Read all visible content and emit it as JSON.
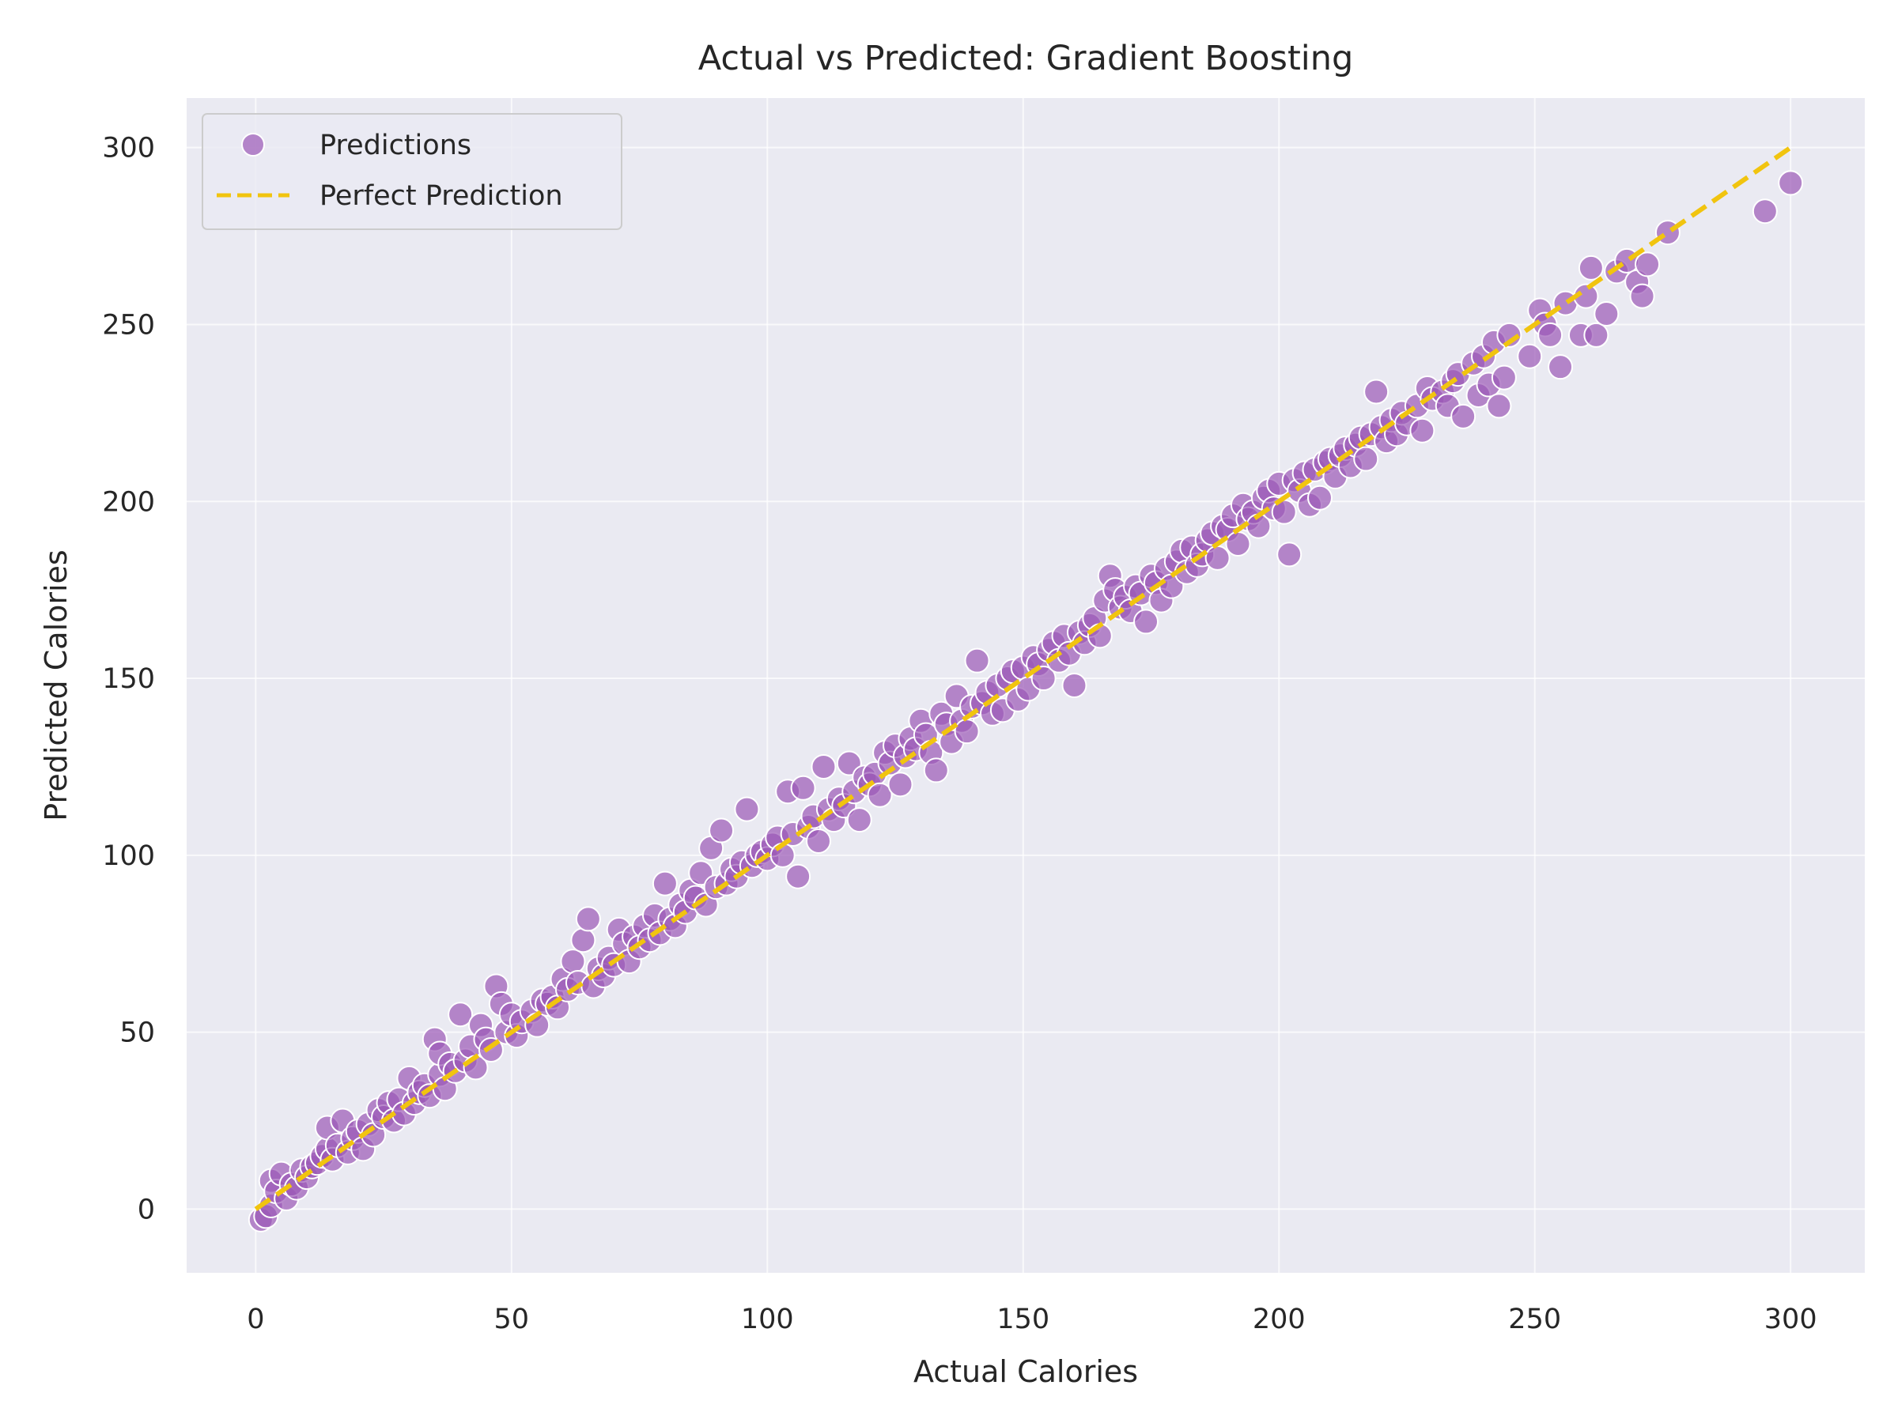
{
  "chart_data": {
    "type": "scatter",
    "title": "Actual vs Predicted: Gradient Boosting",
    "xlabel": "Actual Calories",
    "ylabel": "Predicted Calories",
    "xlim": [
      -13.5,
      314.5
    ],
    "ylim": [
      -18,
      314
    ],
    "xticks": [
      0,
      50,
      100,
      150,
      200,
      250,
      300
    ],
    "yticks": [
      0,
      50,
      100,
      150,
      200,
      250,
      300
    ],
    "grid": true,
    "legend": {
      "placement": "top-left",
      "entries": [
        "Predictions",
        "Perfect Prediction"
      ]
    },
    "series": [
      {
        "name": "Predictions",
        "color": "#9b59b6",
        "points": [
          [
            1,
            -3
          ],
          [
            2,
            -2
          ],
          [
            3,
            1
          ],
          [
            3,
            8
          ],
          [
            4,
            5
          ],
          [
            5,
            10
          ],
          [
            6,
            3
          ],
          [
            7,
            7
          ],
          [
            8,
            6
          ],
          [
            9,
            11
          ],
          [
            10,
            9
          ],
          [
            11,
            12
          ],
          [
            12,
            13
          ],
          [
            13,
            15
          ],
          [
            14,
            17
          ],
          [
            14,
            23
          ],
          [
            15,
            14
          ],
          [
            16,
            18
          ],
          [
            17,
            25
          ],
          [
            18,
            16
          ],
          [
            19,
            20
          ],
          [
            20,
            22
          ],
          [
            21,
            17
          ],
          [
            22,
            24
          ],
          [
            23,
            21
          ],
          [
            24,
            28
          ],
          [
            25,
            26
          ],
          [
            26,
            30
          ],
          [
            27,
            25
          ],
          [
            28,
            31
          ],
          [
            29,
            27
          ],
          [
            30,
            37
          ],
          [
            31,
            30
          ],
          [
            32,
            33
          ],
          [
            33,
            35
          ],
          [
            34,
            32
          ],
          [
            35,
            48
          ],
          [
            36,
            38
          ],
          [
            36,
            44
          ],
          [
            37,
            34
          ],
          [
            38,
            41
          ],
          [
            39,
            39
          ],
          [
            40,
            55
          ],
          [
            41,
            42
          ],
          [
            42,
            46
          ],
          [
            43,
            40
          ],
          [
            44,
            52
          ],
          [
            45,
            48
          ],
          [
            46,
            45
          ],
          [
            47,
            63
          ],
          [
            48,
            58
          ],
          [
            49,
            50
          ],
          [
            50,
            55
          ],
          [
            51,
            49
          ],
          [
            52,
            53
          ],
          [
            54,
            56
          ],
          [
            55,
            52
          ],
          [
            56,
            59
          ],
          [
            57,
            58
          ],
          [
            58,
            60
          ],
          [
            59,
            57
          ],
          [
            60,
            65
          ],
          [
            61,
            62
          ],
          [
            62,
            70
          ],
          [
            63,
            64
          ],
          [
            64,
            76
          ],
          [
            65,
            82
          ],
          [
            66,
            63
          ],
          [
            67,
            68
          ],
          [
            68,
            66
          ],
          [
            69,
            71
          ],
          [
            70,
            69
          ],
          [
            71,
            79
          ],
          [
            72,
            75
          ],
          [
            73,
            70
          ],
          [
            74,
            77
          ],
          [
            75,
            74
          ],
          [
            76,
            80
          ],
          [
            77,
            76
          ],
          [
            78,
            83
          ],
          [
            79,
            78
          ],
          [
            80,
            92
          ],
          [
            81,
            82
          ],
          [
            82,
            80
          ],
          [
            83,
            86
          ],
          [
            84,
            84
          ],
          [
            85,
            90
          ],
          [
            86,
            88
          ],
          [
            87,
            95
          ],
          [
            88,
            86
          ],
          [
            89,
            102
          ],
          [
            90,
            91
          ],
          [
            91,
            107
          ],
          [
            92,
            92
          ],
          [
            93,
            96
          ],
          [
            94,
            94
          ],
          [
            95,
            98
          ],
          [
            96,
            113
          ],
          [
            97,
            97
          ],
          [
            98,
            100
          ],
          [
            99,
            101
          ],
          [
            100,
            99
          ],
          [
            101,
            103
          ],
          [
            102,
            105
          ],
          [
            103,
            100
          ],
          [
            104,
            118
          ],
          [
            105,
            106
          ],
          [
            106,
            94
          ],
          [
            107,
            119
          ],
          [
            108,
            108
          ],
          [
            109,
            111
          ],
          [
            110,
            104
          ],
          [
            111,
            125
          ],
          [
            112,
            113
          ],
          [
            113,
            110
          ],
          [
            114,
            116
          ],
          [
            115,
            114
          ],
          [
            116,
            126
          ],
          [
            117,
            118
          ],
          [
            118,
            110
          ],
          [
            119,
            122
          ],
          [
            120,
            120
          ],
          [
            121,
            123
          ],
          [
            122,
            117
          ],
          [
            123,
            129
          ],
          [
            124,
            126
          ],
          [
            125,
            131
          ],
          [
            126,
            120
          ],
          [
            127,
            128
          ],
          [
            128,
            133
          ],
          [
            129,
            130
          ],
          [
            130,
            138
          ],
          [
            131,
            134
          ],
          [
            132,
            129
          ],
          [
            133,
            124
          ],
          [
            134,
            140
          ],
          [
            135,
            137
          ],
          [
            136,
            132
          ],
          [
            137,
            145
          ],
          [
            138,
            138
          ],
          [
            139,
            135
          ],
          [
            140,
            142
          ],
          [
            141,
            155
          ],
          [
            142,
            143
          ],
          [
            143,
            146
          ],
          [
            144,
            140
          ],
          [
            145,
            148
          ],
          [
            146,
            141
          ],
          [
            147,
            150
          ],
          [
            148,
            152
          ],
          [
            149,
            144
          ],
          [
            150,
            153
          ],
          [
            151,
            147
          ],
          [
            152,
            156
          ],
          [
            153,
            154
          ],
          [
            154,
            150
          ],
          [
            155,
            158
          ],
          [
            156,
            160
          ],
          [
            157,
            155
          ],
          [
            158,
            162
          ],
          [
            159,
            157
          ],
          [
            160,
            148
          ],
          [
            161,
            163
          ],
          [
            162,
            160
          ],
          [
            163,
            165
          ],
          [
            164,
            167
          ],
          [
            165,
            162
          ],
          [
            166,
            172
          ],
          [
            167,
            179
          ],
          [
            168,
            175
          ],
          [
            169,
            170
          ],
          [
            170,
            173
          ],
          [
            171,
            169
          ],
          [
            172,
            176
          ],
          [
            173,
            174
          ],
          [
            174,
            166
          ],
          [
            175,
            179
          ],
          [
            176,
            177
          ],
          [
            177,
            172
          ],
          [
            178,
            181
          ],
          [
            179,
            176
          ],
          [
            180,
            183
          ],
          [
            181,
            186
          ],
          [
            182,
            180
          ],
          [
            183,
            187
          ],
          [
            184,
            182
          ],
          [
            185,
            185
          ],
          [
            186,
            189
          ],
          [
            187,
            191
          ],
          [
            188,
            184
          ],
          [
            189,
            193
          ],
          [
            190,
            192
          ],
          [
            191,
            196
          ],
          [
            192,
            188
          ],
          [
            193,
            199
          ],
          [
            194,
            195
          ],
          [
            195,
            197
          ],
          [
            196,
            193
          ],
          [
            197,
            201
          ],
          [
            198,
            203
          ],
          [
            199,
            198
          ],
          [
            200,
            205
          ],
          [
            201,
            197
          ],
          [
            202,
            185
          ],
          [
            203,
            206
          ],
          [
            204,
            203
          ],
          [
            205,
            208
          ],
          [
            206,
            199
          ],
          [
            207,
            209
          ],
          [
            208,
            201
          ],
          [
            209,
            211
          ],
          [
            210,
            212
          ],
          [
            211,
            207
          ],
          [
            212,
            213
          ],
          [
            213,
            215
          ],
          [
            214,
            210
          ],
          [
            215,
            216
          ],
          [
            216,
            218
          ],
          [
            217,
            212
          ],
          [
            218,
            219
          ],
          [
            219,
            231
          ],
          [
            220,
            221
          ],
          [
            221,
            217
          ],
          [
            222,
            223
          ],
          [
            223,
            219
          ],
          [
            224,
            225
          ],
          [
            225,
            222
          ],
          [
            227,
            227
          ],
          [
            228,
            220
          ],
          [
            229,
            232
          ],
          [
            230,
            229
          ],
          [
            232,
            231
          ],
          [
            233,
            227
          ],
          [
            234,
            234
          ],
          [
            235,
            236
          ],
          [
            236,
            224
          ],
          [
            238,
            239
          ],
          [
            239,
            230
          ],
          [
            240,
            241
          ],
          [
            241,
            233
          ],
          [
            242,
            245
          ],
          [
            243,
            227
          ],
          [
            244,
            235
          ],
          [
            245,
            247
          ],
          [
            249,
            241
          ],
          [
            251,
            254
          ],
          [
            252,
            250
          ],
          [
            253,
            247
          ],
          [
            255,
            238
          ],
          [
            256,
            256
          ],
          [
            259,
            247
          ],
          [
            260,
            258
          ],
          [
            261,
            266
          ],
          [
            262,
            247
          ],
          [
            264,
            253
          ],
          [
            266,
            265
          ],
          [
            268,
            268
          ],
          [
            270,
            262
          ],
          [
            271,
            258
          ],
          [
            272,
            267
          ],
          [
            276,
            276
          ],
          [
            295,
            282
          ],
          [
            300,
            290
          ]
        ]
      },
      {
        "name": "Perfect Prediction",
        "color": "#f1c40f",
        "points": [
          [
            0,
            0
          ],
          [
            300,
            300
          ]
        ]
      }
    ]
  }
}
